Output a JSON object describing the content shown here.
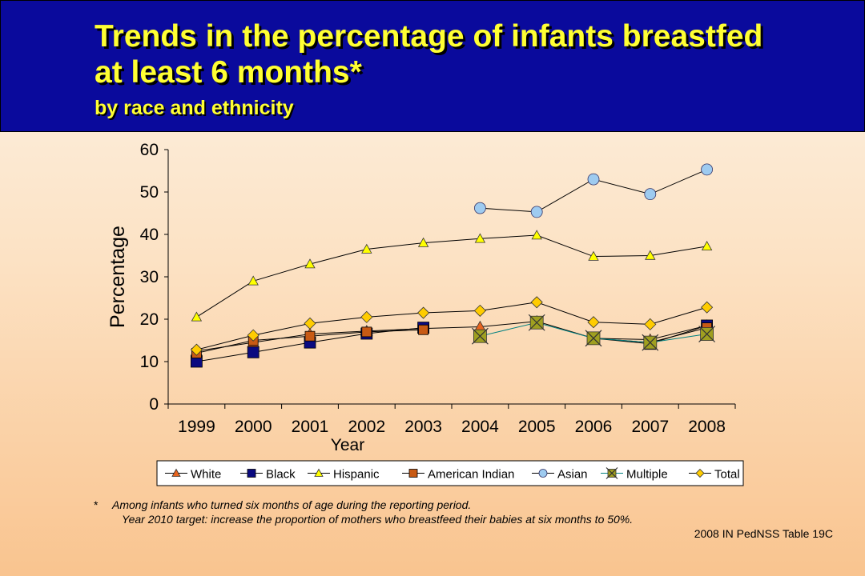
{
  "header": {
    "title_line1": "Trends in the percentage of infants breastfed",
    "title_line2": "at least 6 months*",
    "subtitle": "by race and ethnicity"
  },
  "chart_data": {
    "type": "line",
    "categories": [
      "1999",
      "2000",
      "2001",
      "2002",
      "2003",
      "2004",
      "2005",
      "2006",
      "2007",
      "2008"
    ],
    "xlabel": "Year",
    "ylabel": "Percentage",
    "ylim": [
      0,
      60
    ],
    "yticks": [
      0,
      10,
      20,
      30,
      40,
      50,
      60
    ],
    "grid": false,
    "legend_position": "bottom",
    "series": [
      {
        "name": "White",
        "marker": "triangle",
        "color": "#e8641e",
        "values": [
          12.5,
          14.5,
          16.5,
          17.2,
          17.8,
          18.2,
          19.5,
          15.5,
          15.2,
          18.5
        ]
      },
      {
        "name": "Black",
        "marker": "square",
        "color": "#0a0a80",
        "values": [
          10.0,
          12.2,
          14.5,
          16.6,
          18.0,
          null,
          null,
          15.5,
          14.2,
          18.5
        ]
      },
      {
        "name": "Hispanic",
        "marker": "triangle",
        "color": "#ffff00",
        "values": [
          20.5,
          29.0,
          33.0,
          36.5,
          38.0,
          39.0,
          39.8,
          34.8,
          35.0,
          37.2
        ]
      },
      {
        "name": "American Indian",
        "marker": "square",
        "color": "#c85a14",
        "values": [
          12.0,
          15.0,
          16.0,
          17.0,
          17.5,
          null,
          null,
          15.5,
          14.5,
          18.0
        ]
      },
      {
        "name": "Asian",
        "marker": "circle",
        "color": "#9ecbf0",
        "values": [
          null,
          null,
          null,
          null,
          null,
          46.2,
          45.3,
          53.0,
          49.5,
          55.3
        ]
      },
      {
        "name": "Multiple",
        "marker": "xsquare",
        "color": "#a0a020",
        "values": [
          null,
          null,
          null,
          null,
          null,
          16.0,
          19.2,
          15.5,
          14.5,
          16.5
        ]
      },
      {
        "name": "Total",
        "marker": "diamond",
        "color": "#ffcc00",
        "values": [
          12.8,
          16.2,
          19.0,
          20.5,
          21.5,
          22.0,
          24.0,
          19.3,
          18.8,
          22.8
        ]
      }
    ]
  },
  "footnotes": {
    "star": "*",
    "line1": "Among infants who turned six months of age during the reporting period.",
    "line2": "Year 2010 target: increase the proportion of mothers who breastfeed their babies at six months to 50%.",
    "source": "2008 IN PedNSS Table 19C"
  }
}
